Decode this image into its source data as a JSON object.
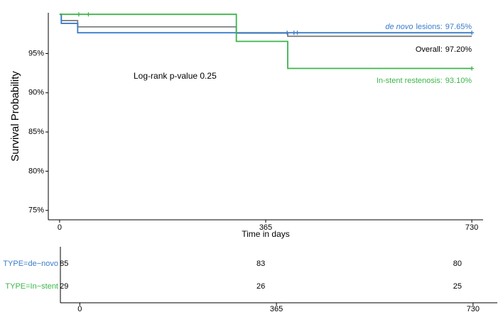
{
  "chart_data": {
    "type": "step",
    "y_label": "Survival Probability",
    "x_label": "Time in days",
    "annotation": "Log-rank p-value 0.25",
    "xlim": [
      -20,
      750
    ],
    "xticks": [
      0,
      365,
      730
    ],
    "ylim": [
      73.8,
      100.2
    ],
    "yticks": [
      {
        "value": 75,
        "label": "75%"
      },
      {
        "value": 80,
        "label": "80%"
      },
      {
        "value": 85,
        "label": "85%"
      },
      {
        "value": 90,
        "label": "90%"
      },
      {
        "value": 95,
        "label": "95%"
      }
    ],
    "series": [
      {
        "label": "Overall:",
        "color": "#808080",
        "label_color": "#000000",
        "x": [
          0,
          3,
          32,
          313,
          404,
          730
        ],
        "values": [
          100,
          99.2,
          98.4,
          97.6,
          97.2,
          97.2
        ],
        "value_label": "97.20%",
        "censor_x": []
      },
      {
        "label_italic": "de novo",
        "label": "lesions:",
        "color": "#3a7dc9",
        "label_color": "#3a7dc9",
        "x": [
          0,
          3,
          32,
          730
        ],
        "values": [
          100,
          98.85,
          97.65,
          97.65
        ],
        "value_label": "97.65%",
        "censor_x": [
          403,
          415,
          421,
          730
        ]
      },
      {
        "label": "In-stent restenosis:",
        "color": "#3cb54a",
        "label_color": "#3cb54a",
        "x": [
          0,
          313,
          404,
          730
        ],
        "values": [
          100,
          96.55,
          93.1,
          93.1
        ],
        "value_label": "93.10%",
        "censor_x": [
          34,
          51,
          730
        ]
      }
    ],
    "risk_table": {
      "xlim": [
        -36,
        775
      ],
      "xticks": [
        0,
        365,
        730
      ],
      "rows": [
        {
          "name": "TYPE=de−novo",
          "color": "#3a7dc9",
          "values": [
            85,
            83,
            80
          ]
        },
        {
          "name": "TYPE=In−stent",
          "color": "#3cb54a",
          "values": [
            29,
            26,
            25
          ]
        }
      ]
    }
  }
}
